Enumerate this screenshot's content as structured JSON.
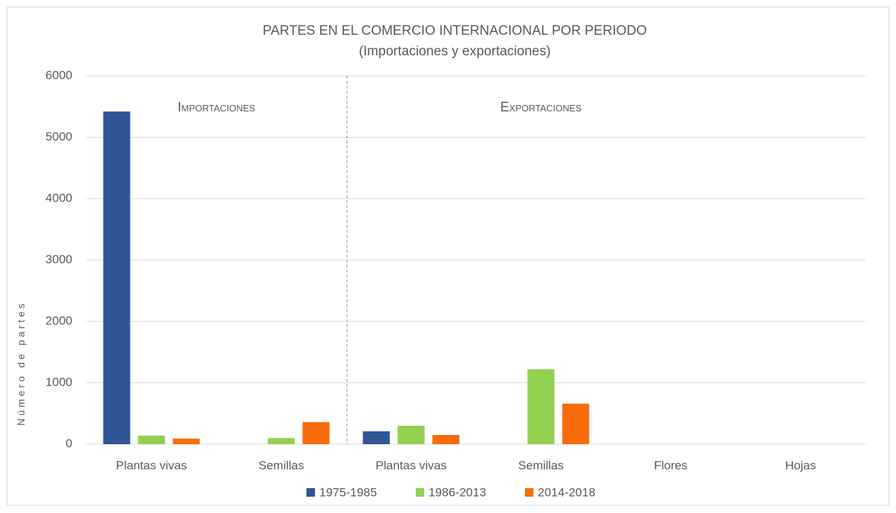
{
  "chart_data": {
    "type": "bar",
    "title": "PARTES EN EL COMERCIO INTERNACIONAL POR PERIODO",
    "subtitle": "(Importaciones y exportaciones)",
    "y_label": "Número de partes",
    "annotations": [
      "Importaciones",
      "Exportaciones"
    ],
    "categories": [
      "Plantas vivas",
      "Semillas",
      "Plantas vivas",
      "Semillas",
      "Flores",
      "Hojas"
    ],
    "series": [
      {
        "name": "1975-1985",
        "color": "#2f5597",
        "values": [
          5420,
          0,
          210,
          0,
          0,
          0
        ]
      },
      {
        "name": "1986-2013",
        "color": "#92d050",
        "values": [
          140,
          100,
          300,
          1220,
          0,
          0
        ]
      },
      {
        "name": "2014-2018",
        "color": "#f96b0a",
        "values": [
          90,
          360,
          150,
          660,
          0,
          0
        ]
      }
    ],
    "ylim": [
      0,
      6000
    ],
    "yticks": [
      0,
      1000,
      2000,
      3000,
      4000,
      5000,
      6000
    ],
    "grid": true,
    "legend": "bottom"
  }
}
